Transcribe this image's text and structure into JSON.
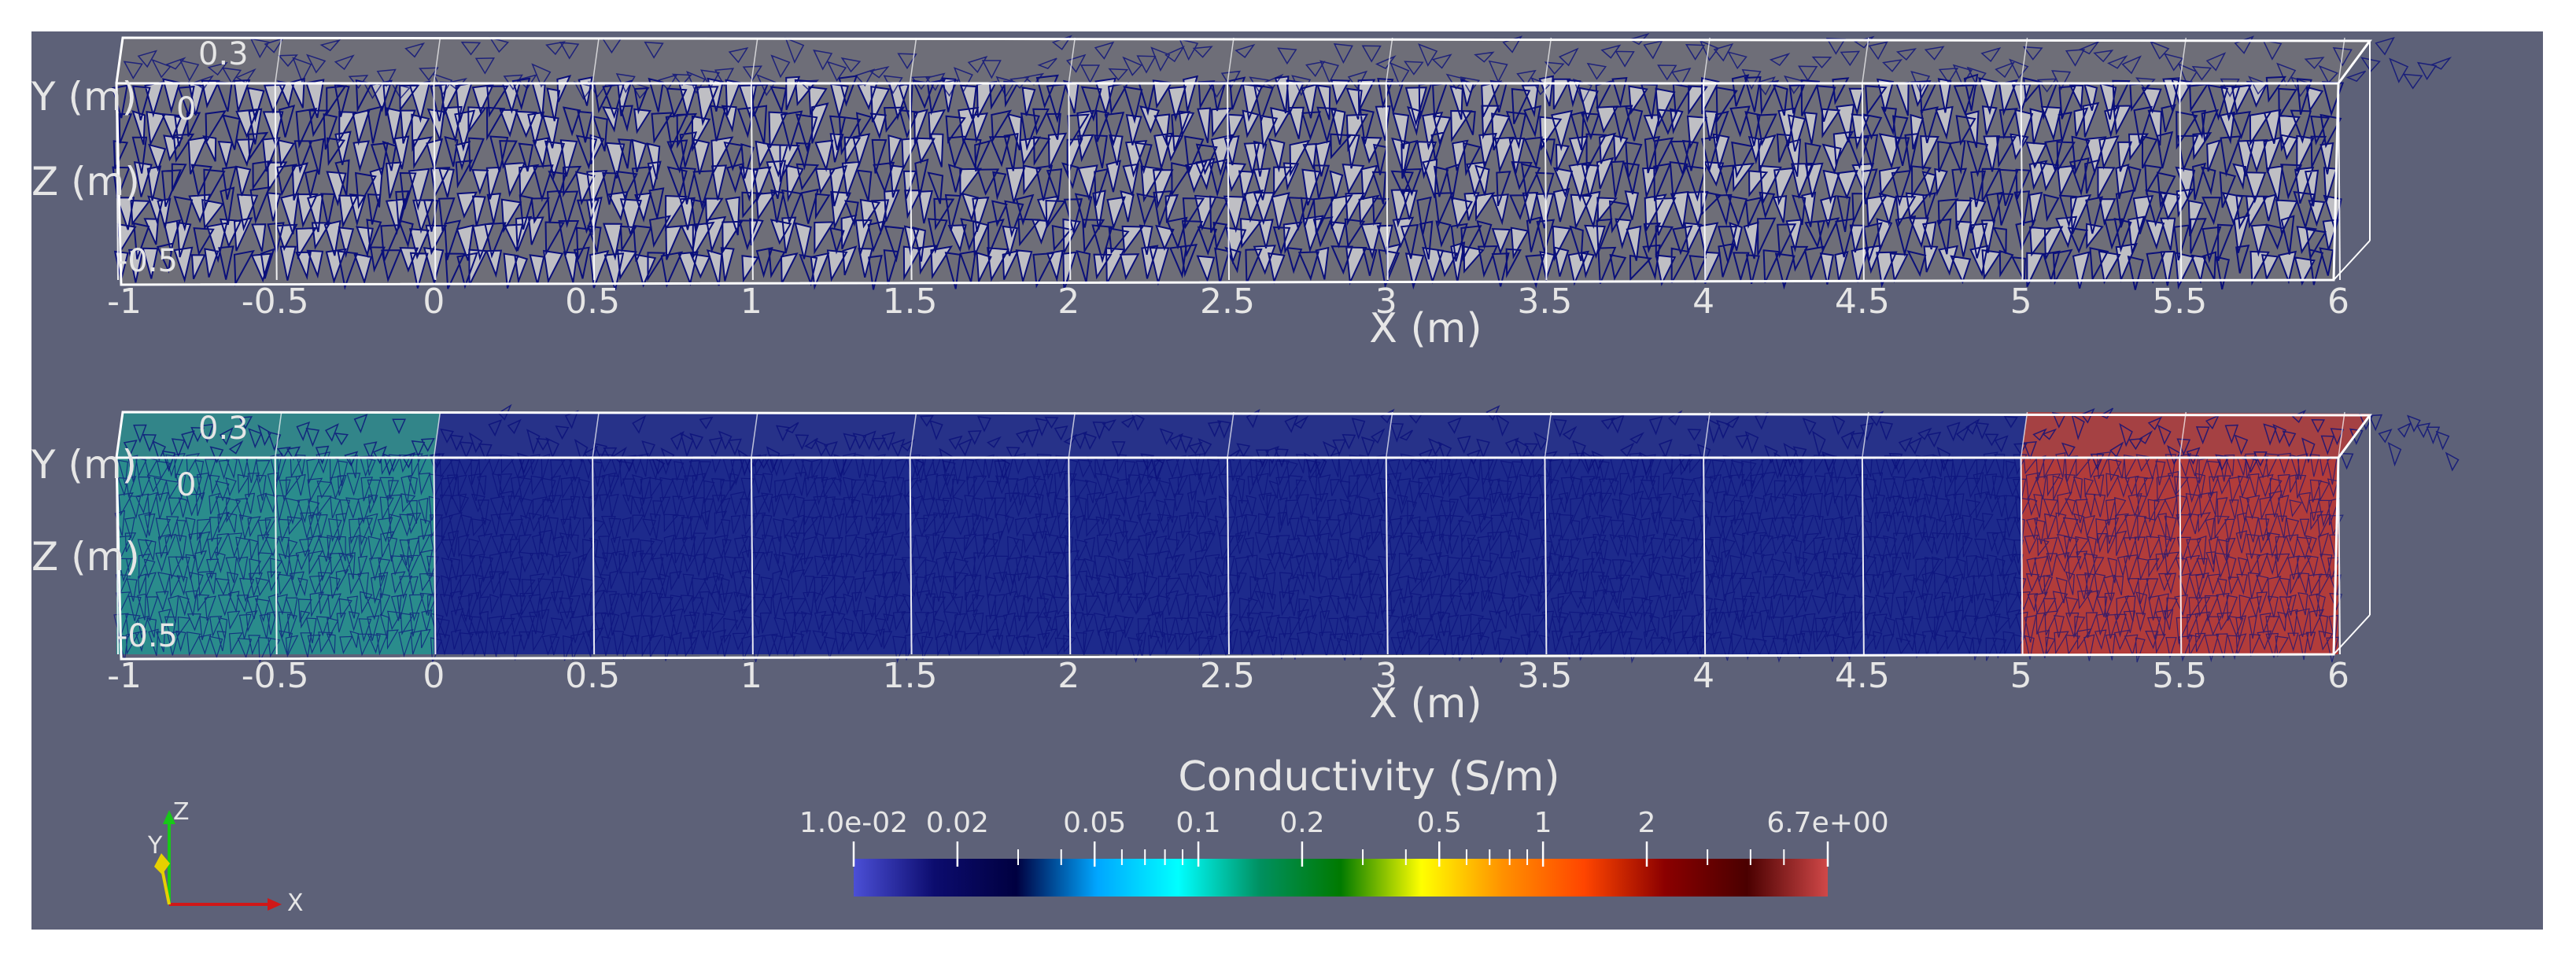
{
  "colors": {
    "background": "#5d6178",
    "frame": "#ffffff",
    "mesh_edge": "#0a0f7a",
    "mesh_face_light": "#c8c8cc",
    "mesh_face_dark": "#6e6e78",
    "label": "#e6e6e6"
  },
  "panels": [
    {
      "name": "mesh",
      "x_axis_title": "X (m)",
      "y_axis_title": "Y (m)",
      "z_axis_title": "Z (m)",
      "x_ticks": [
        "-1",
        "-0.5",
        "0",
        "0.5",
        "1",
        "1.5",
        "2",
        "2.5",
        "3",
        "3.5",
        "4",
        "4.5",
        "5",
        "5.5",
        "6"
      ],
      "y_top_tick": "0.3",
      "y_zero_tick": "0",
      "z_bottom_tick": "-0.5"
    },
    {
      "name": "conductivity",
      "x_axis_title": "X (m)",
      "y_axis_title": "Y (m)",
      "z_axis_title": "Z (m)",
      "x_ticks": [
        "-1",
        "-0.5",
        "0",
        "0.5",
        "1",
        "1.5",
        "2",
        "2.5",
        "3",
        "3.5",
        "4",
        "4.5",
        "5",
        "5.5",
        "6"
      ],
      "y_top_tick": "0.3",
      "y_zero_tick": "0",
      "z_bottom_tick": "-0.5",
      "regions": [
        {
          "x_start": -1,
          "x_end": 0,
          "conductivity": 0.05,
          "color": "#2a8c8c"
        },
        {
          "x_start": 0,
          "x_end": 5,
          "conductivity": 0.014,
          "color": "#1d2a8c"
        },
        {
          "x_start": 5,
          "x_end": 6,
          "conductivity": 4.5,
          "color": "#b23c3a"
        }
      ]
    }
  ],
  "colorbar": {
    "title": "Conductivity (S/m)",
    "min_label": "1.0e-02",
    "max_label": "6.7e+00",
    "labels": [
      {
        "text": "1.0e-02",
        "value": 0.01
      },
      {
        "text": "0.02",
        "value": 0.02
      },
      {
        "text": "0.05",
        "value": 0.05
      },
      {
        "text": "0.1",
        "value": 0.1
      },
      {
        "text": "0.2",
        "value": 0.2
      },
      {
        "text": "0.5",
        "value": 0.5
      },
      {
        "text": "1",
        "value": 1
      },
      {
        "text": "2",
        "value": 2
      },
      {
        "text": "6.7e+00",
        "value": 6.7
      }
    ],
    "scale": "log",
    "range": [
      0.01,
      6.7
    ],
    "stops": [
      "#4b4fd6",
      "#0c0c6e",
      "#000040",
      "#00a6ff",
      "#00ffff",
      "#009060",
      "#007a00",
      "#ffff00",
      "#ff9000",
      "#ff4500",
      "#8b0000",
      "#4a0000",
      "#d04848"
    ]
  },
  "orientation_axes": {
    "x_label": "X",
    "y_label": "Y",
    "z_label": "Z",
    "x_color": "#d01818",
    "y_color": "#e6d000",
    "z_color": "#18c818"
  }
}
